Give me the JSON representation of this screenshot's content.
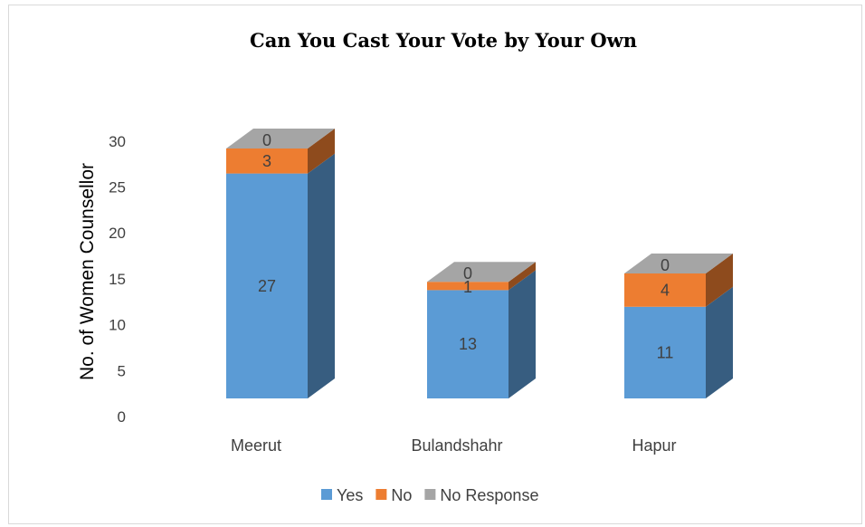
{
  "chart_data": {
    "type": "bar",
    "stacked": true,
    "three_d": true,
    "title": "Can You Cast Your Vote by Your Own",
    "ylabel": "No. of Women Counsellor",
    "xlabel": "",
    "categories": [
      "Meerut",
      "Bulandshahr",
      "Hapur"
    ],
    "series": [
      {
        "name": "Yes",
        "values": [
          27,
          13,
          11
        ],
        "color": "#5b9bd5"
      },
      {
        "name": "No",
        "values": [
          3,
          1,
          4
        ],
        "color": "#ed7d31"
      },
      {
        "name": "No Response",
        "values": [
          0,
          0,
          0
        ],
        "color": "#a5a5a5"
      }
    ],
    "ylim": [
      0,
      30
    ],
    "yticks": [
      0,
      5,
      10,
      15,
      20,
      25,
      30
    ],
    "legend_position": "bottom",
    "grid": false
  }
}
